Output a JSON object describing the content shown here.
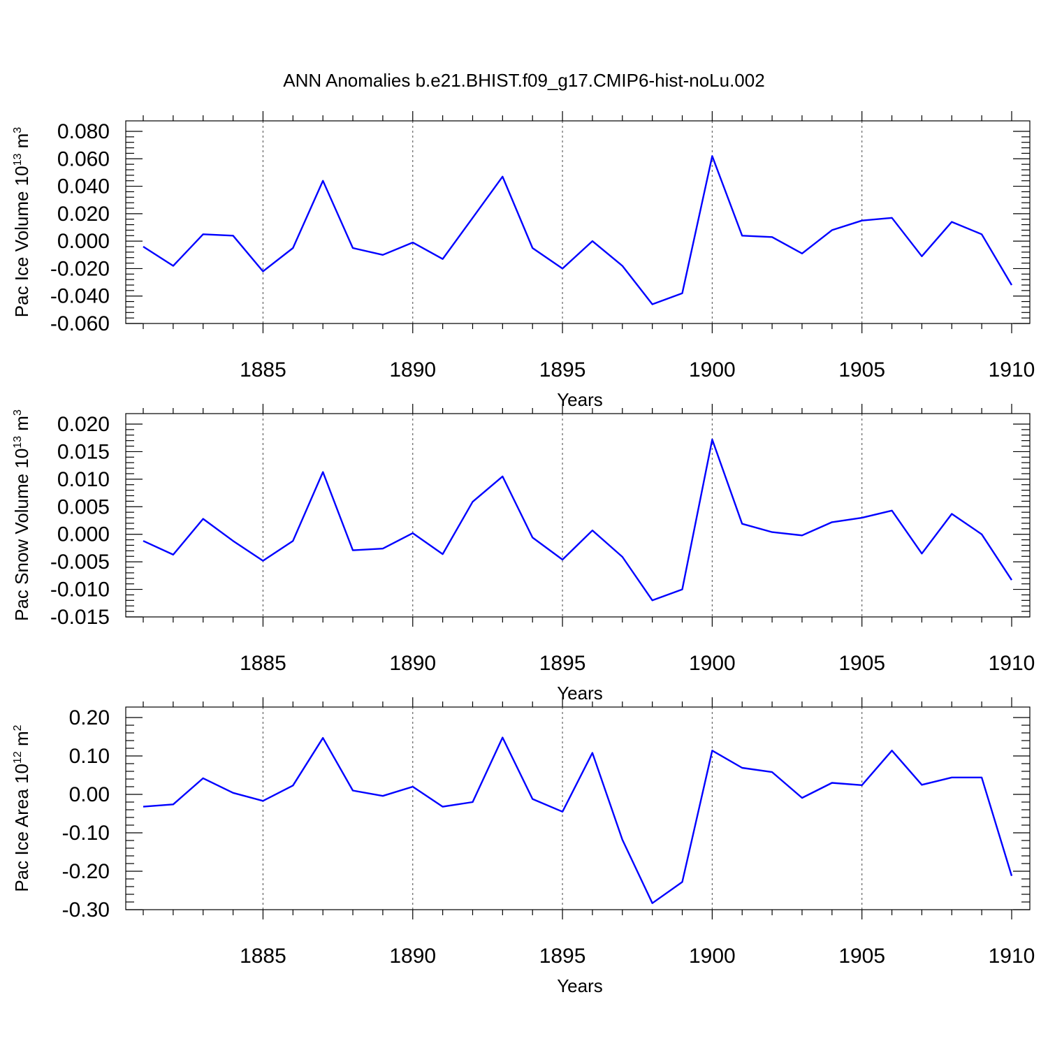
{
  "figure": {
    "title": "ANN Anomalies b.e21.BHIST.f09_g17.CMIP6-hist-noLu.002",
    "line_color": "#0000ff"
  },
  "chart_data": [
    {
      "type": "line",
      "xlabel": "Years",
      "ylabel": "Pac Ice Volume 10",
      "ylabel_exp": "13",
      "ylabel_unit": " m",
      "ylabel_unit_exp": "3",
      "xlim": [
        1881,
        1910
      ],
      "ylim": [
        -0.06,
        0.08
      ],
      "x_ticks": [
        "1885",
        "1890",
        "1895",
        "1900",
        "1905",
        "1910"
      ],
      "y_ticks": [
        "-0.060",
        "-0.040",
        "-0.020",
        "0.000",
        "0.020",
        "0.040",
        "0.060",
        "0.080"
      ],
      "grid": "dashed vertical at major x ticks",
      "x": [
        1881,
        1882,
        1883,
        1884,
        1885,
        1886,
        1887,
        1888,
        1889,
        1890,
        1891,
        1892,
        1893,
        1894,
        1895,
        1896,
        1897,
        1898,
        1899,
        1900,
        1901,
        1902,
        1903,
        1904,
        1905,
        1906,
        1907,
        1908,
        1909,
        1910
      ],
      "values": [
        -0.004,
        -0.018,
        0.005,
        0.004,
        -0.022,
        -0.005,
        0.044,
        -0.005,
        -0.01,
        -0.001,
        -0.013,
        0.017,
        0.047,
        -0.005,
        -0.02,
        0.0,
        -0.018,
        -0.046,
        -0.038,
        0.062,
        0.004,
        0.003,
        -0.009,
        0.008,
        0.015,
        0.017,
        -0.011,
        0.014,
        0.005,
        -0.032
      ]
    },
    {
      "type": "line",
      "xlabel": "Years",
      "ylabel": "Pac Snow Volume 10",
      "ylabel_exp": "13",
      "ylabel_unit": " m",
      "ylabel_unit_exp": "3",
      "xlim": [
        1881,
        1910
      ],
      "ylim": [
        -0.015,
        0.02
      ],
      "x_ticks": [
        "1885",
        "1890",
        "1895",
        "1900",
        "1905",
        "1910"
      ],
      "y_ticks": [
        "-0.015",
        "-0.010",
        "-0.005",
        "0.000",
        "0.005",
        "0.010",
        "0.015",
        "0.020"
      ],
      "grid": "dashed vertical at major x ticks",
      "x": [
        1881,
        1882,
        1883,
        1884,
        1885,
        1886,
        1887,
        1888,
        1889,
        1890,
        1891,
        1892,
        1893,
        1894,
        1895,
        1896,
        1897,
        1898,
        1899,
        1900,
        1901,
        1902,
        1903,
        1904,
        1905,
        1906,
        1907,
        1908,
        1909,
        1910
      ],
      "values": [
        -0.0012,
        -0.0037,
        0.0028,
        -0.0012,
        -0.0048,
        -0.0012,
        0.0113,
        -0.0029,
        -0.0026,
        0.0002,
        -0.0036,
        0.0059,
        0.0105,
        -0.0006,
        -0.0046,
        0.0007,
        -0.0041,
        -0.012,
        -0.01,
        0.0172,
        0.0019,
        0.0004,
        -0.0002,
        0.0022,
        0.003,
        0.0043,
        -0.0035,
        0.0037,
        0.0,
        -0.0083
      ]
    },
    {
      "type": "line",
      "xlabel": "Years",
      "ylabel": "Pac Ice Area 10",
      "ylabel_exp": "12",
      "ylabel_unit": " m",
      "ylabel_unit_exp": "2",
      "xlim": [
        1881,
        1910
      ],
      "ylim": [
        -0.3,
        0.2
      ],
      "x_ticks": [
        "1885",
        "1890",
        "1895",
        "1900",
        "1905",
        "1910"
      ],
      "y_ticks": [
        "-0.30",
        "-0.20",
        "-0.10",
        "0.00",
        "0.10",
        "0.20"
      ],
      "grid": "dashed vertical at major x ticks",
      "x": [
        1881,
        1882,
        1883,
        1884,
        1885,
        1886,
        1887,
        1888,
        1889,
        1890,
        1891,
        1892,
        1893,
        1894,
        1895,
        1896,
        1897,
        1898,
        1899,
        1900,
        1901,
        1902,
        1903,
        1904,
        1905,
        1906,
        1907,
        1908,
        1909,
        1910
      ],
      "values": [
        -0.032,
        -0.026,
        0.042,
        0.004,
        -0.017,
        0.023,
        0.147,
        0.01,
        -0.004,
        0.02,
        -0.032,
        -0.02,
        0.148,
        -0.012,
        -0.045,
        0.108,
        -0.118,
        -0.283,
        -0.228,
        0.114,
        0.069,
        0.058,
        -0.009,
        0.03,
        0.024,
        0.114,
        0.025,
        0.044,
        0.044,
        -0.212
      ]
    }
  ]
}
